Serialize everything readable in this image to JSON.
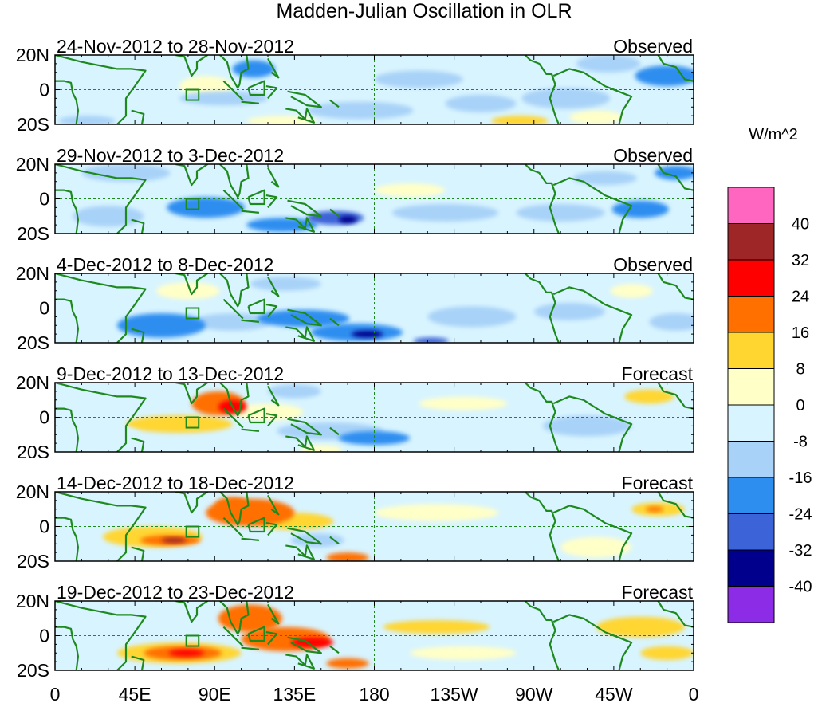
{
  "chart_data": {
    "type": "heatmap",
    "title": "Madden-Julian Oscillation in OLR",
    "colorbar": {
      "label": "W/m^2",
      "ticks": [
        "40",
        "32",
        "24",
        "16",
        "8",
        "0",
        "-8",
        "-16",
        "-24",
        "-32",
        "-40"
      ],
      "colors": [
        "#ff66c0",
        "#9e2626",
        "#ff0000",
        "#ff7000",
        "#ffd630",
        "#ffffc8",
        "#d8f4ff",
        "#a8d2f8",
        "#2e8ef0",
        "#3c64d8",
        "#00008c",
        "#8c2ce6"
      ]
    },
    "lon_ticks": [
      "0",
      "45E",
      "90E",
      "135E",
      "180",
      "135W",
      "90W",
      "45W",
      "0"
    ],
    "lon_values": [
      0,
      45,
      90,
      135,
      180,
      225,
      270,
      315,
      360
    ],
    "lat_ticks": [
      "20N",
      "0",
      "20S"
    ],
    "lat_values": [
      20,
      0,
      -20
    ],
    "xlim": [
      0,
      360
    ],
    "ylim": [
      -20,
      20
    ],
    "panels": [
      {
        "period": "24-Nov-2012 to 28-Nov-2012",
        "status": "Observed",
        "blobs": [
          {
            "lon": 18,
            "lat": -18,
            "rlon": 16,
            "rlat": 3,
            "v": -16
          },
          {
            "lon": 45,
            "lat": -5,
            "rlon": 20,
            "rlat": 5,
            "v": -8
          },
          {
            "lon": 85,
            "lat": 2,
            "rlon": 15,
            "rlat": 6,
            "v": 3
          },
          {
            "lon": 95,
            "lat": -5,
            "rlon": 25,
            "rlat": 4,
            "v": -10
          },
          {
            "lon": 112,
            "lat": 12,
            "rlon": 12,
            "rlat": 5,
            "v": -20
          },
          {
            "lon": 128,
            "lat": -18,
            "rlon": 20,
            "rlat": 3,
            "v": 5
          },
          {
            "lon": 140,
            "lat": 5,
            "rlon": 18,
            "rlat": 8,
            "v": -8
          },
          {
            "lon": 172,
            "lat": -12,
            "rlon": 30,
            "rlat": 5,
            "v": -12
          },
          {
            "lon": 205,
            "lat": 6,
            "rlon": 25,
            "rlat": 5,
            "v": -9
          },
          {
            "lon": 240,
            "lat": -8,
            "rlon": 20,
            "rlat": 5,
            "v": -12
          },
          {
            "lon": 262,
            "lat": -18,
            "rlon": 16,
            "rlat": 3,
            "v": 8
          },
          {
            "lon": 288,
            "lat": -5,
            "rlon": 25,
            "rlat": 6,
            "v": -10
          },
          {
            "lon": 312,
            "lat": 15,
            "rlon": 18,
            "rlat": 5,
            "v": -14
          },
          {
            "lon": 345,
            "lat": 8,
            "rlon": 18,
            "rlat": 6,
            "v": -20
          },
          {
            "lon": 305,
            "lat": -16,
            "rlon": 15,
            "rlat": 4,
            "v": 4
          }
        ]
      },
      {
        "period": "29-Nov-2012 to 3-Dec-2012",
        "status": "Observed",
        "blobs": [
          {
            "lon": 40,
            "lat": 15,
            "rlon": 25,
            "rlat": 5,
            "v": -12
          },
          {
            "lon": 30,
            "lat": -10,
            "rlon": 20,
            "rlat": 6,
            "v": -10
          },
          {
            "lon": 85,
            "lat": -5,
            "rlon": 22,
            "rlat": 6,
            "v": -20
          },
          {
            "lon": 128,
            "lat": -15,
            "rlon": 20,
            "rlat": 4,
            "v": -18
          },
          {
            "lon": 158,
            "lat": -11,
            "rlon": 16,
            "rlat": 4,
            "v": -30
          },
          {
            "lon": 165,
            "lat": -12,
            "rlon": 5,
            "rlat": 2,
            "v": -36
          },
          {
            "lon": 200,
            "lat": 5,
            "rlon": 20,
            "rlat": 4,
            "v": 2
          },
          {
            "lon": 220,
            "lat": -8,
            "rlon": 30,
            "rlat": 5,
            "v": -10
          },
          {
            "lon": 285,
            "lat": -8,
            "rlon": 25,
            "rlat": 5,
            "v": -14
          },
          {
            "lon": 330,
            "lat": -6,
            "rlon": 16,
            "rlat": 5,
            "v": -18
          },
          {
            "lon": 350,
            "lat": 15,
            "rlon": 12,
            "rlat": 4,
            "v": -20
          },
          {
            "lon": 310,
            "lat": 12,
            "rlon": 18,
            "rlat": 4,
            "v": -9
          }
        ]
      },
      {
        "period": "4-Dec-2012 to 8-Dec-2012",
        "status": "Observed",
        "blobs": [
          {
            "lon": 75,
            "lat": 10,
            "rlon": 18,
            "rlat": 5,
            "v": 6
          },
          {
            "lon": 60,
            "lat": -10,
            "rlon": 25,
            "rlat": 7,
            "v": -20
          },
          {
            "lon": 100,
            "lat": -8,
            "rlon": 22,
            "rlat": 5,
            "v": -12
          },
          {
            "lon": 140,
            "lat": -6,
            "rlon": 26,
            "rlat": 5,
            "v": -18
          },
          {
            "lon": 170,
            "lat": -14,
            "rlon": 26,
            "rlat": 5,
            "v": -24
          },
          {
            "lon": 176,
            "lat": -15,
            "rlon": 9,
            "rlat": 2,
            "v": -36
          },
          {
            "lon": 212,
            "lat": -19,
            "rlon": 10,
            "rlat": 2,
            "v": -30
          },
          {
            "lon": 235,
            "lat": -5,
            "rlon": 25,
            "rlat": 6,
            "v": -10
          },
          {
            "lon": 290,
            "lat": -2,
            "rlon": 20,
            "rlat": 5,
            "v": -12
          },
          {
            "lon": 325,
            "lat": 10,
            "rlon": 12,
            "rlat": 4,
            "v": 6
          },
          {
            "lon": 350,
            "lat": -8,
            "rlon": 15,
            "rlat": 5,
            "v": -14
          },
          {
            "lon": 130,
            "lat": 14,
            "rlon": 20,
            "rlat": 4,
            "v": -10
          }
        ]
      },
      {
        "period": "9-Dec-2012 to 13-Dec-2012",
        "status": "Forecast",
        "blobs": [
          {
            "lon": 92,
            "lat": 8,
            "rlon": 15,
            "rlat": 7,
            "v": 20
          },
          {
            "lon": 100,
            "lat": 6,
            "rlon": 8,
            "rlat": 4,
            "v": 26
          },
          {
            "lon": 70,
            "lat": -4,
            "rlon": 30,
            "rlat": 5,
            "v": 8
          },
          {
            "lon": 28,
            "lat": -10,
            "rlon": 20,
            "rlat": 5,
            "v": -8
          },
          {
            "lon": 120,
            "lat": 3,
            "rlon": 20,
            "rlat": 5,
            "v": 6
          },
          {
            "lon": 155,
            "lat": -8,
            "rlon": 30,
            "rlat": 5,
            "v": -14
          },
          {
            "lon": 180,
            "lat": -12,
            "rlon": 20,
            "rlat": 4,
            "v": -22
          },
          {
            "lon": 135,
            "lat": 15,
            "rlon": 15,
            "rlat": 4,
            "v": -10
          },
          {
            "lon": 230,
            "lat": 8,
            "rlon": 25,
            "rlat": 4,
            "v": 3
          },
          {
            "lon": 240,
            "lat": -8,
            "rlon": 30,
            "rlat": 5,
            "v": -8
          },
          {
            "lon": 300,
            "lat": -5,
            "rlon": 25,
            "rlat": 6,
            "v": -10
          },
          {
            "lon": 335,
            "lat": 12,
            "rlon": 14,
            "rlat": 4,
            "v": 8
          },
          {
            "lon": 150,
            "lat": -19,
            "rlon": 12,
            "rlat": 3,
            "v": 6
          }
        ]
      },
      {
        "period": "14-Dec-2012 to 18-Dec-2012",
        "status": "Forecast",
        "blobs": [
          {
            "lon": 55,
            "lat": -6,
            "rlon": 28,
            "rlat": 6,
            "v": 12
          },
          {
            "lon": 65,
            "lat": -8,
            "rlon": 17,
            "rlat": 3,
            "v": 22
          },
          {
            "lon": 67,
            "lat": -8,
            "rlon": 7,
            "rlat": 1.5,
            "v": 34
          },
          {
            "lon": 110,
            "lat": 8,
            "rlon": 25,
            "rlat": 8,
            "v": 16
          },
          {
            "lon": 100,
            "lat": 12,
            "rlon": 10,
            "rlat": 5,
            "v": 22
          },
          {
            "lon": 135,
            "lat": 3,
            "rlon": 22,
            "rlat": 5,
            "v": 14
          },
          {
            "lon": 165,
            "lat": -18,
            "rlon": 12,
            "rlat": 3,
            "v": 16
          },
          {
            "lon": 20,
            "lat": 5,
            "rlon": 20,
            "rlat": 8,
            "v": -8
          },
          {
            "lon": 148,
            "lat": -8,
            "rlon": 15,
            "rlat": 4,
            "v": -14
          },
          {
            "lon": 215,
            "lat": 8,
            "rlon": 35,
            "rlat": 5,
            "v": 3
          },
          {
            "lon": 240,
            "lat": -8,
            "rlon": 25,
            "rlat": 5,
            "v": -6
          },
          {
            "lon": 305,
            "lat": -12,
            "rlon": 20,
            "rlat": 6,
            "v": 6
          },
          {
            "lon": 340,
            "lat": 10,
            "rlon": 15,
            "rlat": 4,
            "v": 8
          },
          {
            "lon": 338,
            "lat": 10,
            "rlon": 5,
            "rlat": 1.5,
            "v": 18
          }
        ]
      },
      {
        "period": "19-Dec-2012 to 23-Dec-2012",
        "status": "Forecast",
        "blobs": [
          {
            "lon": 70,
            "lat": -10,
            "rlon": 35,
            "rlat": 6,
            "v": 14
          },
          {
            "lon": 72,
            "lat": -10,
            "rlon": 22,
            "rlat": 4,
            "v": 20
          },
          {
            "lon": 74,
            "lat": -10,
            "rlon": 10,
            "rlat": 2,
            "v": 28
          },
          {
            "lon": 110,
            "lat": 10,
            "rlon": 18,
            "rlat": 8,
            "v": 16
          },
          {
            "lon": 130,
            "lat": -2,
            "rlon": 25,
            "rlat": 7,
            "v": 18
          },
          {
            "lon": 145,
            "lat": -4,
            "rlon": 12,
            "rlat": 3,
            "v": 26
          },
          {
            "lon": 165,
            "lat": -16,
            "rlon": 12,
            "rlat": 3,
            "v": 22
          },
          {
            "lon": 25,
            "lat": 5,
            "rlon": 20,
            "rlat": 8,
            "v": -7
          },
          {
            "lon": 215,
            "lat": 5,
            "rlon": 30,
            "rlat": 4,
            "v": 8
          },
          {
            "lon": 230,
            "lat": -10,
            "rlon": 30,
            "rlat": 4,
            "v": 6
          },
          {
            "lon": 250,
            "lat": 10,
            "rlon": 15,
            "rlat": 3,
            "v": -6
          },
          {
            "lon": 330,
            "lat": 5,
            "rlon": 25,
            "rlat": 6,
            "v": 8
          },
          {
            "lon": 345,
            "lat": -10,
            "rlon": 15,
            "rlat": 4,
            "v": 10
          }
        ]
      }
    ]
  }
}
